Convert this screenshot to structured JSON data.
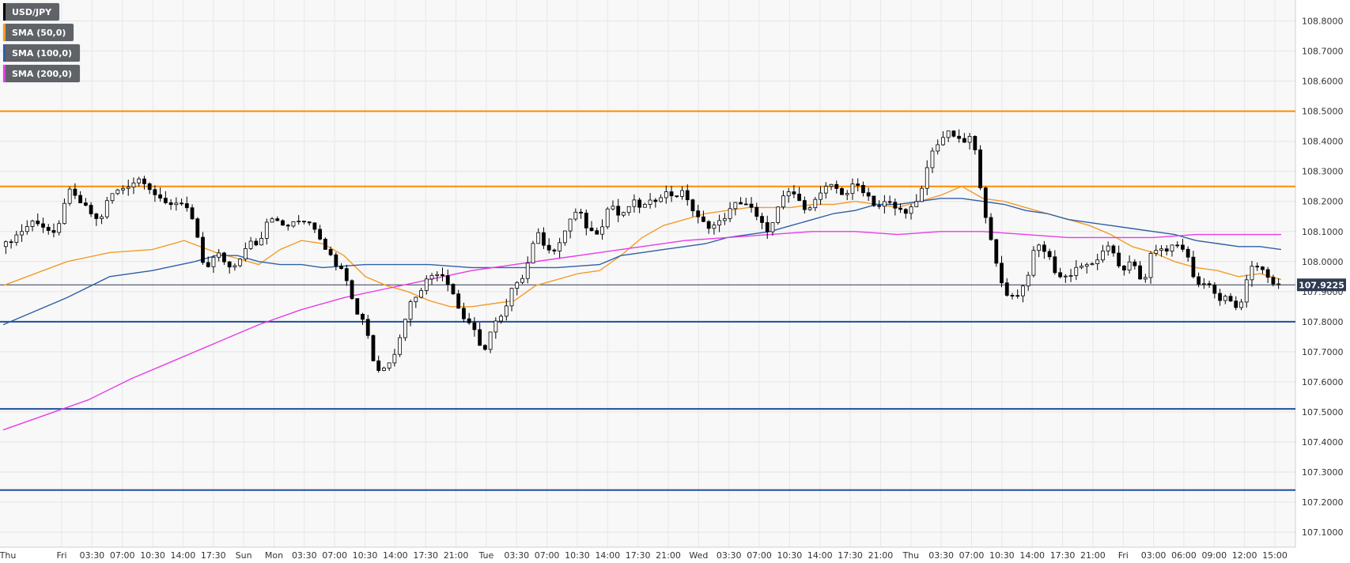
{
  "chart_data": {
    "type": "candlestick",
    "instrument": "USD/JPY",
    "y_range": [
      107.05,
      108.87
    ],
    "y_ticks": [
      "108.8000",
      "108.7000",
      "108.6000",
      "108.5000",
      "108.4000",
      "108.3000",
      "108.2000",
      "108.1000",
      "108.0000",
      "107.9000",
      "107.8000",
      "107.7000",
      "107.6000",
      "107.5000",
      "107.4000",
      "107.3000",
      "107.2000",
      "107.1000"
    ],
    "x_ticks": [
      "Thu",
      "Fri",
      "03:30",
      "07:00",
      "10:30",
      "14:00",
      "17:30",
      "Sun",
      "Mon",
      "03:30",
      "07:00",
      "10:30",
      "14:00",
      "17:30",
      "21:00",
      "Tue",
      "03:30",
      "07:00",
      "10:30",
      "14:00",
      "17:30",
      "21:00",
      "Wed",
      "03:30",
      "07:00",
      "10:30",
      "14:00",
      "17:30",
      "21:00",
      "Thu",
      "03:30",
      "07:00",
      "10:30",
      "14:00",
      "17:30",
      "21:00",
      "Fri",
      "03:00",
      "06:00",
      "09:00",
      "12:00",
      "15:00"
    ],
    "current_price": "107.9225",
    "current_price_value": 107.9225,
    "horizontal_levels": [
      {
        "value": 108.5,
        "color": "#ff8c00"
      },
      {
        "value": 108.25,
        "color": "#ff8c00"
      },
      {
        "value": 107.8,
        "color": "#1f4e9e"
      },
      {
        "value": 107.51,
        "color": "#1f4e9e"
      },
      {
        "value": 107.24,
        "color": "#1f4e9e"
      }
    ],
    "series": [
      {
        "name": "USD/JPY",
        "color": "#000000",
        "path": [
          [
            0,
            108.05
          ],
          [
            3,
            108.14
          ],
          [
            5,
            108.08
          ],
          [
            6,
            108.24
          ],
          [
            8,
            108.17
          ],
          [
            9,
            108.13
          ],
          [
            10,
            108.22
          ],
          [
            13,
            108.28
          ],
          [
            15,
            108.19
          ],
          [
            17,
            108.2
          ],
          [
            18,
            108.11
          ],
          [
            19,
            107.96
          ],
          [
            20,
            108.03
          ],
          [
            21,
            107.99
          ],
          [
            22,
            107.98
          ],
          [
            23,
            108.07
          ],
          [
            24,
            108.06
          ],
          [
            25,
            108.16
          ],
          [
            26,
            108.12
          ],
          [
            27,
            108.12
          ],
          [
            28,
            108.14
          ],
          [
            29,
            108.13
          ],
          [
            31,
            108.0
          ],
          [
            32,
            107.98
          ],
          [
            33,
            107.84
          ],
          [
            34,
            107.8
          ],
          [
            35,
            107.63
          ],
          [
            36,
            107.66
          ],
          [
            37,
            107.71
          ],
          [
            38,
            107.85
          ],
          [
            39,
            107.9
          ],
          [
            40,
            107.95
          ],
          [
            41,
            107.97
          ],
          [
            42,
            107.92
          ],
          [
            43,
            107.82
          ],
          [
            44,
            107.79
          ],
          [
            45,
            107.69
          ],
          [
            46,
            107.79
          ],
          [
            47,
            107.82
          ],
          [
            48,
            107.93
          ],
          [
            49,
            107.96
          ],
          [
            50,
            108.1
          ],
          [
            51,
            108.05
          ],
          [
            52,
            108.03
          ],
          [
            53,
            108.13
          ],
          [
            54,
            108.17
          ],
          [
            55,
            108.1
          ],
          [
            56,
            108.1
          ],
          [
            57,
            108.2
          ],
          [
            58,
            108.14
          ],
          [
            59,
            108.2
          ],
          [
            60,
            108.18
          ],
          [
            61,
            108.2
          ],
          [
            62,
            108.23
          ],
          [
            63,
            108.22
          ],
          [
            64,
            108.23
          ],
          [
            65,
            108.15
          ],
          [
            66,
            108.12
          ],
          [
            67,
            108.12
          ],
          [
            68,
            108.16
          ],
          [
            69,
            108.2
          ],
          [
            70,
            108.19
          ],
          [
            71,
            108.13
          ],
          [
            72,
            108.1
          ],
          [
            73,
            108.2
          ],
          [
            74,
            108.24
          ],
          [
            75,
            108.18
          ],
          [
            76,
            108.19
          ],
          [
            77,
            108.24
          ],
          [
            78,
            108.25
          ],
          [
            79,
            108.22
          ],
          [
            80,
            108.26
          ],
          [
            81,
            108.23
          ],
          [
            82,
            108.18
          ],
          [
            83,
            108.2
          ],
          [
            84,
            108.17
          ],
          [
            85,
            108.17
          ],
          [
            86,
            108.2
          ],
          [
            87,
            108.35
          ],
          [
            88,
            108.41
          ],
          [
            89,
            108.43
          ],
          [
            90,
            108.39
          ],
          [
            91,
            108.42
          ],
          [
            92,
            108.2
          ],
          [
            93,
            108.02
          ],
          [
            94,
            107.9
          ],
          [
            95,
            107.88
          ],
          [
            96,
            107.93
          ],
          [
            97,
            108.06
          ],
          [
            98,
            108.03
          ],
          [
            99,
            107.95
          ],
          [
            100,
            107.95
          ],
          [
            101,
            107.99
          ],
          [
            102,
            107.98
          ],
          [
            103,
            108.02
          ],
          [
            104,
            108.05
          ],
          [
            105,
            107.97
          ],
          [
            106,
            108.0
          ],
          [
            107,
            107.92
          ],
          [
            108,
            108.05
          ],
          [
            109,
            108.03
          ],
          [
            110,
            108.06
          ],
          [
            111,
            108.04
          ],
          [
            112,
            107.92
          ],
          [
            113,
            107.94
          ],
          [
            114,
            107.87
          ],
          [
            115,
            107.88
          ],
          [
            116,
            107.83
          ],
          [
            117,
            107.98
          ],
          [
            118,
            107.99
          ],
          [
            119,
            107.93
          ],
          [
            120,
            107.92
          ]
        ]
      },
      {
        "name": "SMA (50,0)",
        "color": "#f39c28",
        "path": [
          [
            0,
            107.92
          ],
          [
            6,
            108.0
          ],
          [
            10,
            108.03
          ],
          [
            14,
            108.04
          ],
          [
            17,
            108.07
          ],
          [
            20,
            108.03
          ],
          [
            22,
            108.01
          ],
          [
            24,
            107.99
          ],
          [
            26,
            108.04
          ],
          [
            28,
            108.07
          ],
          [
            30,
            108.06
          ],
          [
            32,
            108.02
          ],
          [
            34,
            107.95
          ],
          [
            36,
            107.92
          ],
          [
            38,
            107.9
          ],
          [
            40,
            107.87
          ],
          [
            42,
            107.85
          ],
          [
            44,
            107.85
          ],
          [
            46,
            107.86
          ],
          [
            48,
            107.87
          ],
          [
            50,
            107.92
          ],
          [
            54,
            107.96
          ],
          [
            56,
            107.97
          ],
          [
            58,
            108.02
          ],
          [
            60,
            108.08
          ],
          [
            62,
            108.12
          ],
          [
            64,
            108.14
          ],
          [
            66,
            108.16
          ],
          [
            68,
            108.17
          ],
          [
            70,
            108.18
          ],
          [
            72,
            108.18
          ],
          [
            74,
            108.18
          ],
          [
            76,
            108.19
          ],
          [
            78,
            108.19
          ],
          [
            80,
            108.2
          ],
          [
            82,
            108.19
          ],
          [
            84,
            108.18
          ],
          [
            86,
            108.2
          ],
          [
            88,
            108.22
          ],
          [
            90,
            108.25
          ],
          [
            92,
            108.21
          ],
          [
            94,
            108.2
          ],
          [
            96,
            108.18
          ],
          [
            98,
            108.16
          ],
          [
            100,
            108.14
          ],
          [
            102,
            108.12
          ],
          [
            104,
            108.09
          ],
          [
            106,
            108.05
          ],
          [
            108,
            108.03
          ],
          [
            110,
            108.0
          ],
          [
            112,
            107.98
          ],
          [
            114,
            107.97
          ],
          [
            116,
            107.95
          ],
          [
            118,
            107.96
          ],
          [
            120,
            107.94
          ]
        ]
      },
      {
        "name": "SMA (100,0)",
        "color": "#2e5fa8",
        "path": [
          [
            0,
            107.79
          ],
          [
            6,
            107.88
          ],
          [
            10,
            107.95
          ],
          [
            14,
            107.97
          ],
          [
            18,
            108.0
          ],
          [
            20,
            108.02
          ],
          [
            22,
            108.02
          ],
          [
            24,
            108.0
          ],
          [
            26,
            107.99
          ],
          [
            28,
            107.99
          ],
          [
            30,
            107.98
          ],
          [
            34,
            107.99
          ],
          [
            36,
            107.99
          ],
          [
            38,
            107.99
          ],
          [
            40,
            107.99
          ],
          [
            44,
            107.98
          ],
          [
            46,
            107.98
          ],
          [
            48,
            107.98
          ],
          [
            52,
            107.98
          ],
          [
            56,
            107.99
          ],
          [
            58,
            108.02
          ],
          [
            60,
            108.03
          ],
          [
            62,
            108.04
          ],
          [
            64,
            108.05
          ],
          [
            66,
            108.06
          ],
          [
            68,
            108.08
          ],
          [
            70,
            108.09
          ],
          [
            72,
            108.1
          ],
          [
            74,
            108.12
          ],
          [
            76,
            108.14
          ],
          [
            78,
            108.16
          ],
          [
            80,
            108.17
          ],
          [
            82,
            108.19
          ],
          [
            84,
            108.19
          ],
          [
            86,
            108.2
          ],
          [
            88,
            108.21
          ],
          [
            90,
            108.21
          ],
          [
            92,
            108.2
          ],
          [
            94,
            108.19
          ],
          [
            96,
            108.17
          ],
          [
            98,
            108.16
          ],
          [
            100,
            108.14
          ],
          [
            102,
            108.13
          ],
          [
            104,
            108.12
          ],
          [
            106,
            108.11
          ],
          [
            108,
            108.1
          ],
          [
            110,
            108.09
          ],
          [
            112,
            108.07
          ],
          [
            114,
            108.06
          ],
          [
            116,
            108.05
          ],
          [
            118,
            108.05
          ],
          [
            120,
            108.04
          ]
        ]
      },
      {
        "name": "SMA (200,0)",
        "color": "#e83be8",
        "path": [
          [
            0,
            107.44
          ],
          [
            4,
            107.49
          ],
          [
            8,
            107.54
          ],
          [
            12,
            107.61
          ],
          [
            16,
            107.67
          ],
          [
            20,
            107.73
          ],
          [
            24,
            107.79
          ],
          [
            28,
            107.84
          ],
          [
            32,
            107.88
          ],
          [
            36,
            107.91
          ],
          [
            40,
            107.94
          ],
          [
            44,
            107.97
          ],
          [
            48,
            107.99
          ],
          [
            52,
            108.01
          ],
          [
            56,
            108.03
          ],
          [
            60,
            108.05
          ],
          [
            64,
            108.07
          ],
          [
            68,
            108.08
          ],
          [
            72,
            108.09
          ],
          [
            76,
            108.1
          ],
          [
            80,
            108.1
          ],
          [
            84,
            108.09
          ],
          [
            88,
            108.1
          ],
          [
            92,
            108.1
          ],
          [
            96,
            108.09
          ],
          [
            100,
            108.08
          ],
          [
            104,
            108.08
          ],
          [
            108,
            108.08
          ],
          [
            112,
            108.09
          ],
          [
            116,
            108.09
          ],
          [
            120,
            108.09
          ]
        ]
      }
    ]
  }
}
